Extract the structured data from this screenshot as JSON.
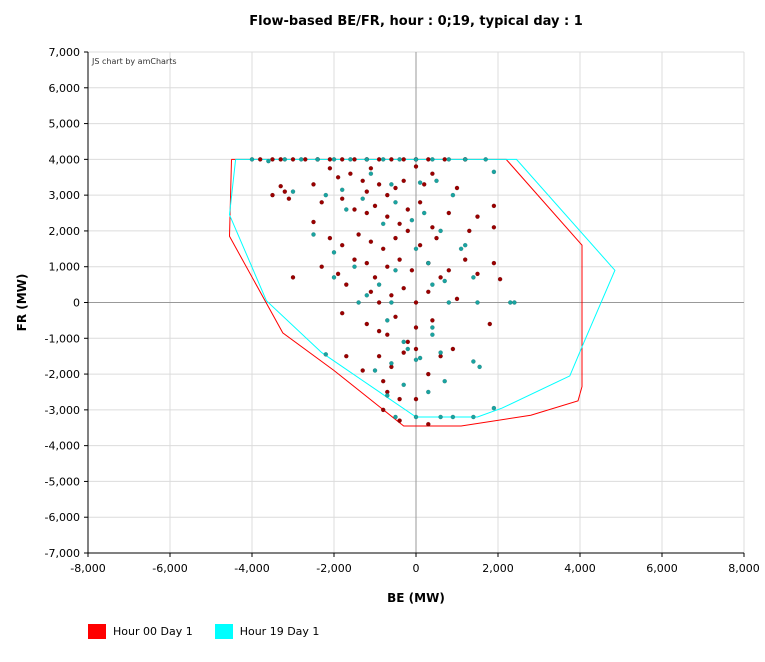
{
  "chart_data": {
    "type": "scatter",
    "title": "Flow-based BE/FR, hour : 0;19, typical day : 1",
    "xlabel": "BE (MW)",
    "ylabel": "FR (MW)",
    "credit": "JS chart by amCharts",
    "xlim": [
      -8000,
      8000
    ],
    "ylim": [
      -7000,
      7000
    ],
    "x_ticks": [
      "-8,000",
      "-6,000",
      "-4,000",
      "-2,000",
      "0",
      "2,000",
      "4,000",
      "6,000",
      "8,000"
    ],
    "y_ticks": [
      "7,000",
      "6,000",
      "5,000",
      "4,000",
      "3,000",
      "2,000",
      "1,000",
      "0",
      "-1,000",
      "-2,000",
      "-3,000",
      "-4,000",
      "-5,000",
      "-6,000",
      "-7,000"
    ],
    "grid": true,
    "legend_position": "bottom-left",
    "series": [
      {
        "name": "Hour 00 Day 1",
        "color": "#ff0000",
        "point_color": "#990000",
        "domain": [
          [
            -4500,
            4000
          ],
          [
            2200,
            4000
          ],
          [
            4050,
            1600
          ],
          [
            4050,
            -2350
          ],
          [
            3950,
            -2750
          ],
          [
            2800,
            -3150
          ],
          [
            1100,
            -3450
          ],
          [
            -300,
            -3450
          ],
          [
            -2000,
            -1900
          ],
          [
            -3250,
            -850
          ],
          [
            -4550,
            1850
          ],
          [
            -4500,
            4000
          ]
        ],
        "points": [
          [
            -3800,
            4000
          ],
          [
            -3500,
            4000
          ],
          [
            -3300,
            4000
          ],
          [
            -3000,
            4000
          ],
          [
            -2700,
            4000
          ],
          [
            -2400,
            4000
          ],
          [
            -2100,
            4000
          ],
          [
            -1800,
            4000
          ],
          [
            -1500,
            4000
          ],
          [
            -1200,
            4000
          ],
          [
            -900,
            4000
          ],
          [
            -600,
            4000
          ],
          [
            -300,
            4000
          ],
          [
            0,
            4000
          ],
          [
            300,
            4000
          ],
          [
            700,
            4000
          ],
          [
            1200,
            4000
          ],
          [
            -3500,
            3000
          ],
          [
            -3300,
            3250
          ],
          [
            -3200,
            3100
          ],
          [
            -3100,
            2900
          ],
          [
            -2500,
            3300
          ],
          [
            -2100,
            3750
          ],
          [
            -1900,
            3500
          ],
          [
            -1600,
            3600
          ],
          [
            -1300,
            3400
          ],
          [
            -1200,
            3100
          ],
          [
            -1100,
            3750
          ],
          [
            -900,
            3300
          ],
          [
            -700,
            3000
          ],
          [
            -500,
            3200
          ],
          [
            -300,
            3400
          ],
          [
            0,
            3800
          ],
          [
            200,
            3300
          ],
          [
            400,
            3600
          ],
          [
            1000,
            3200
          ],
          [
            -2300,
            2800
          ],
          [
            -1800,
            2900
          ],
          [
            -1500,
            2600
          ],
          [
            -1200,
            2500
          ],
          [
            -1000,
            2700
          ],
          [
            -700,
            2400
          ],
          [
            -400,
            2200
          ],
          [
            -200,
            2600
          ],
          [
            100,
            2800
          ],
          [
            400,
            2100
          ],
          [
            800,
            2500
          ],
          [
            1500,
            2400
          ],
          [
            1900,
            2700
          ],
          [
            -2500,
            2250
          ],
          [
            -2100,
            1800
          ],
          [
            -1800,
            1600
          ],
          [
            -1400,
            1900
          ],
          [
            -1100,
            1700
          ],
          [
            -800,
            1500
          ],
          [
            -500,
            1800
          ],
          [
            -200,
            2000
          ],
          [
            100,
            1600
          ],
          [
            500,
            1800
          ],
          [
            1300,
            2000
          ],
          [
            1900,
            2100
          ],
          [
            -3000,
            700
          ],
          [
            -2300,
            1000
          ],
          [
            -1900,
            800
          ],
          [
            -1700,
            500
          ],
          [
            -1500,
            1200
          ],
          [
            -1200,
            1100
          ],
          [
            -1000,
            700
          ],
          [
            -700,
            1000
          ],
          [
            -400,
            1200
          ],
          [
            -100,
            900
          ],
          [
            300,
            1100
          ],
          [
            800,
            900
          ],
          [
            1200,
            1200
          ],
          [
            1500,
            800
          ],
          [
            1900,
            1100
          ],
          [
            2050,
            650
          ],
          [
            -1100,
            300
          ],
          [
            -900,
            0
          ],
          [
            -600,
            200
          ],
          [
            -300,
            400
          ],
          [
            0,
            0
          ],
          [
            300,
            300
          ],
          [
            600,
            700
          ],
          [
            1000,
            100
          ],
          [
            -1800,
            -300
          ],
          [
            -1200,
            -600
          ],
          [
            -900,
            -800
          ],
          [
            -700,
            -900
          ],
          [
            -500,
            -400
          ],
          [
            -200,
            -1100
          ],
          [
            0,
            -700
          ],
          [
            400,
            -500
          ],
          [
            1800,
            -600
          ],
          [
            -1700,
            -1500
          ],
          [
            -900,
            -1500
          ],
          [
            -600,
            -1800
          ],
          [
            -300,
            -1400
          ],
          [
            0,
            -1300
          ],
          [
            300,
            -2000
          ],
          [
            600,
            -1500
          ],
          [
            900,
            -1300
          ],
          [
            -1300,
            -1900
          ],
          [
            -800,
            -2200
          ],
          [
            -700,
            -2500
          ],
          [
            -400,
            -2700
          ],
          [
            0,
            -2700
          ],
          [
            -800,
            -3000
          ],
          [
            -400,
            -3300
          ],
          [
            300,
            -3400
          ]
        ]
      },
      {
        "name": "Hour 19 Day 1",
        "color": "#00ffff",
        "point_color": "#1aa3a0",
        "domain": [
          [
            -4400,
            4000
          ],
          [
            2450,
            4000
          ],
          [
            4850,
            900
          ],
          [
            4100,
            -1100
          ],
          [
            3750,
            -2050
          ],
          [
            2100,
            -2950
          ],
          [
            1500,
            -3200
          ],
          [
            0,
            -3200
          ],
          [
            -2300,
            -1400
          ],
          [
            -3650,
            50
          ],
          [
            -4550,
            2450
          ],
          [
            -4400,
            4000
          ]
        ],
        "points": [
          [
            -4000,
            4000
          ],
          [
            -3600,
            3950
          ],
          [
            -3200,
            4000
          ],
          [
            -2800,
            4000
          ],
          [
            -2400,
            4000
          ],
          [
            -2000,
            4000
          ],
          [
            -1600,
            4000
          ],
          [
            -1200,
            4000
          ],
          [
            -800,
            4000
          ],
          [
            -400,
            4000
          ],
          [
            0,
            4000
          ],
          [
            400,
            4000
          ],
          [
            800,
            4000
          ],
          [
            1200,
            4000
          ],
          [
            1700,
            4000
          ],
          [
            -3000,
            3100
          ],
          [
            -2200,
            3000
          ],
          [
            -1800,
            3150
          ],
          [
            -1100,
            3600
          ],
          [
            -600,
            3300
          ],
          [
            100,
            3350
          ],
          [
            500,
            3400
          ],
          [
            900,
            3000
          ],
          [
            1900,
            3650
          ],
          [
            -2500,
            1900
          ],
          [
            -2000,
            1400
          ],
          [
            -1700,
            2600
          ],
          [
            -1300,
            2900
          ],
          [
            -800,
            2200
          ],
          [
            -500,
            2800
          ],
          [
            -100,
            2300
          ],
          [
            200,
            2500
          ],
          [
            600,
            2000
          ],
          [
            1200,
            1600
          ],
          [
            -2000,
            700
          ],
          [
            -1500,
            1000
          ],
          [
            -900,
            500
          ],
          [
            -500,
            900
          ],
          [
            0,
            1500
          ],
          [
            300,
            1100
          ],
          [
            700,
            600
          ],
          [
            1100,
            1500
          ],
          [
            1400,
            700
          ],
          [
            -1200,
            200
          ],
          [
            -600,
            0
          ],
          [
            400,
            500
          ],
          [
            800,
            0
          ],
          [
            1500,
            0
          ],
          [
            2300,
            0
          ],
          [
            2400,
            0
          ],
          [
            -1400,
            0
          ],
          [
            -700,
            -500
          ],
          [
            -300,
            -1100
          ],
          [
            0,
            -1600
          ],
          [
            400,
            -700
          ],
          [
            400,
            -900
          ],
          [
            600,
            -1400
          ],
          [
            -2200,
            -1450
          ],
          [
            -1000,
            -1900
          ],
          [
            -600,
            -1700
          ],
          [
            -200,
            -1300
          ],
          [
            100,
            -1550
          ],
          [
            700,
            -2200
          ],
          [
            1400,
            -1650
          ],
          [
            1550,
            -1800
          ],
          [
            -700,
            -2600
          ],
          [
            -300,
            -2300
          ],
          [
            300,
            -2500
          ],
          [
            -500,
            -3200
          ],
          [
            0,
            -3200
          ],
          [
            600,
            -3200
          ],
          [
            900,
            -3200
          ],
          [
            1400,
            -3200
          ],
          [
            1900,
            -2950
          ]
        ]
      }
    ]
  }
}
